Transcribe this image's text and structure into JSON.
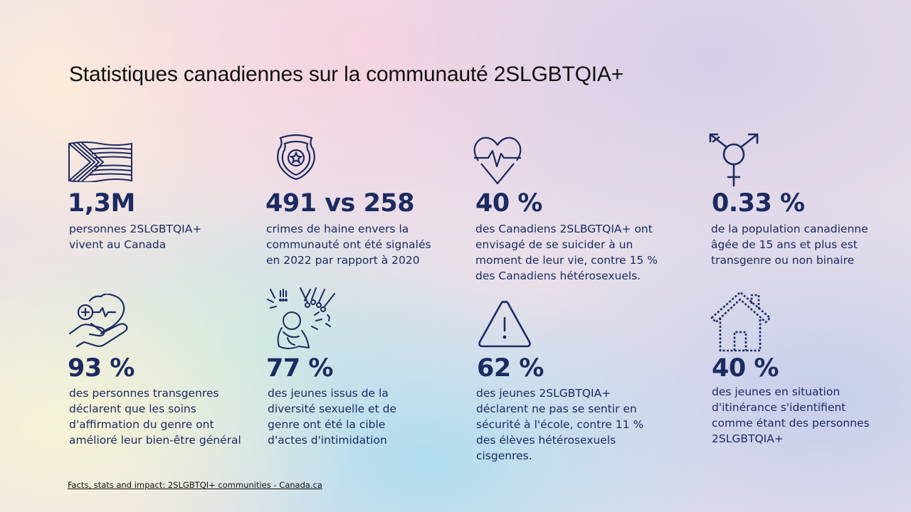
{
  "title": "Statistiques canadiennes sur la communauté 2SLGBTQIA+",
  "stats": [
    {
      "icon": "progress-flag-icon",
      "value": "1,3M",
      "text": "personnes 2SLGBTQIA+ vivent au Canada"
    },
    {
      "icon": "police-badge-icon",
      "value": "491 vs 258",
      "text": "crimes de haine envers la communauté ont été signalés en 2022 par rapport à 2020"
    },
    {
      "icon": "heartbeat-icon",
      "value": "40 %",
      "text": "des Canadiens 2SLBGTQIA+ ont envisagé de se suicider à un moment de leur vie, contre 15 % des Canadiens hétérosexuels."
    },
    {
      "icon": "transgender-symbol-icon",
      "value": "0.33 %",
      "text": "de la population canadienne âgée de 15 ans et plus est transgenre ou non binaire"
    },
    {
      "icon": "hand-heart-icon",
      "value": "93 %",
      "text": "des personnes transgenres déclarent que les soins d'affirmation du genre ont amélioré leur bien-être général"
    },
    {
      "icon": "bullying-icon",
      "value": "77 %",
      "text": "des jeunes issus de la diversité sexuelle et de genre ont été la cible d'actes d'intimidation"
    },
    {
      "icon": "warning-icon",
      "value": "62 %",
      "text": "des jeunes 2SLGBTQIA+ déclarent ne pas se sentir en sécurité à l'école, contre 11 % des élèves hétérosexuels cisgenres."
    },
    {
      "icon": "house-icon",
      "value": "40 %",
      "text": "des jeunes en situation d'itinérance s'identifient comme étant des personnes 2SLGBTQIA+"
    }
  ],
  "source": "Facts, stats and impact: 2SLGBTQI+ communities - Canada.ca",
  "colors": {
    "accent": "#1c2b60"
  }
}
